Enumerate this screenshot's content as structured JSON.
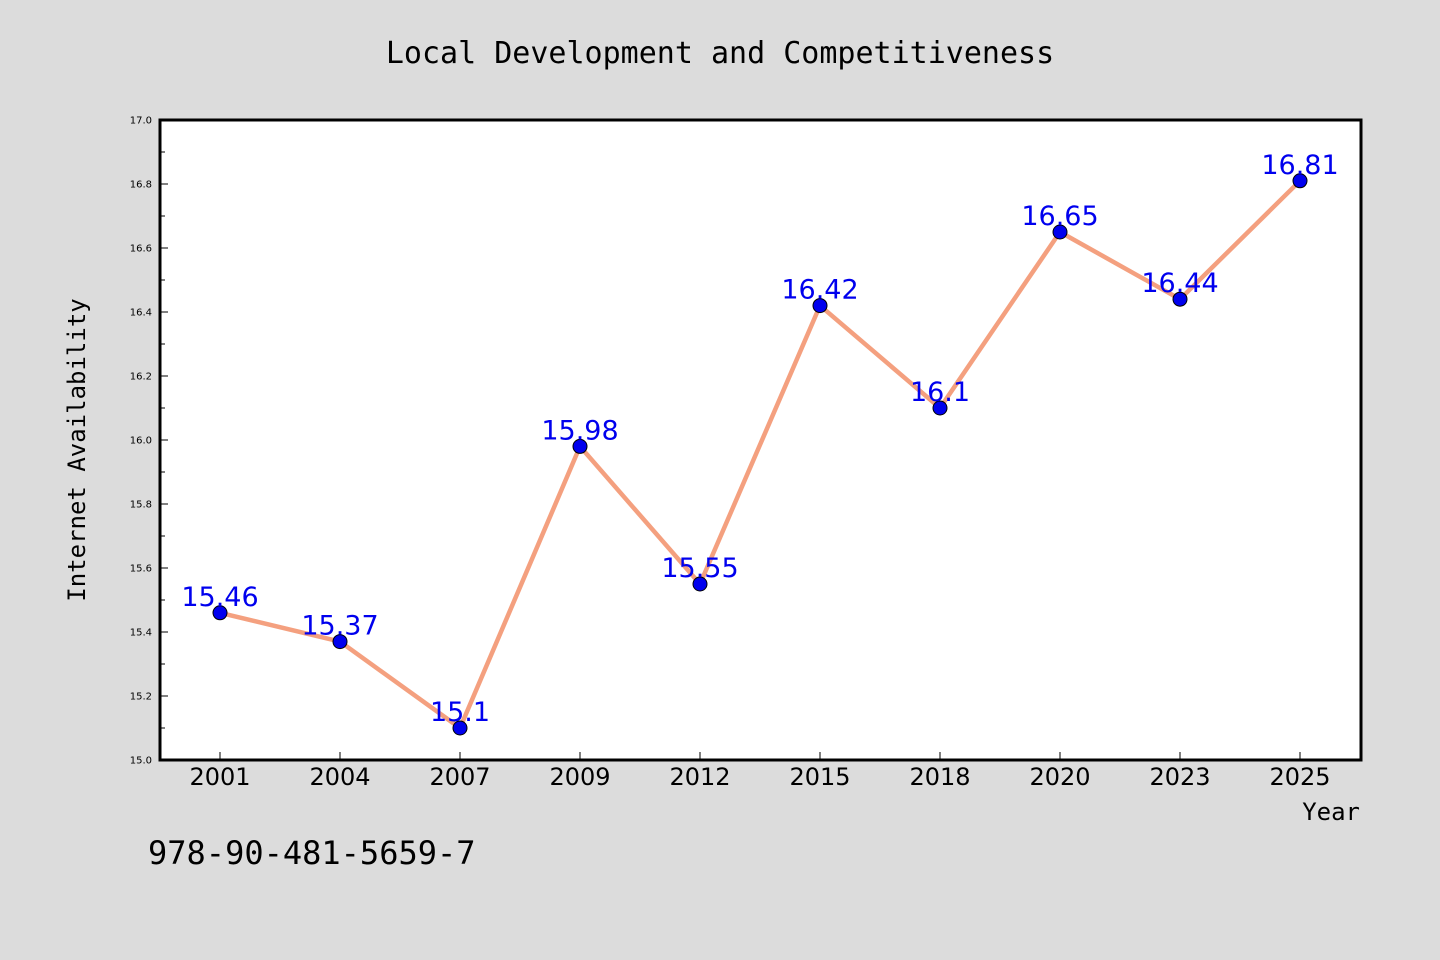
{
  "colors": {
    "background": "#dcdcdc",
    "plot_area": "#ffffff",
    "line": "#f4a07f",
    "marker": "#0000ee",
    "data_label": "#0000ee"
  },
  "footer": {
    "code": "978-90-481-5659-7"
  },
  "chart_data": {
    "type": "line",
    "title": "Local Development and Competitiveness",
    "xlabel": "Year",
    "ylabel": "Internet Availability",
    "categories": [
      "2001",
      "2004",
      "2007",
      "2009",
      "2012",
      "2015",
      "2018",
      "2020",
      "2023",
      "2025"
    ],
    "series": [
      {
        "values": [
          15.46,
          15.37,
          15.1,
          15.98,
          15.55,
          16.42,
          16.1,
          16.65,
          16.44,
          16.81
        ],
        "labels": [
          "15.46",
          "15.37",
          "15.1",
          "15.98",
          "15.55",
          "16.42",
          "16.1",
          "16.65",
          "16.44",
          "16.81"
        ]
      }
    ],
    "ylim": [
      15.0,
      17.0
    ],
    "yticks": [
      "15.0",
      "15.2",
      "15.4",
      "15.6",
      "15.8",
      "16.0",
      "16.2",
      "16.4",
      "16.6",
      "16.8",
      "17.0"
    ],
    "grid": false,
    "legend": "none",
    "markers": "filled circles"
  }
}
